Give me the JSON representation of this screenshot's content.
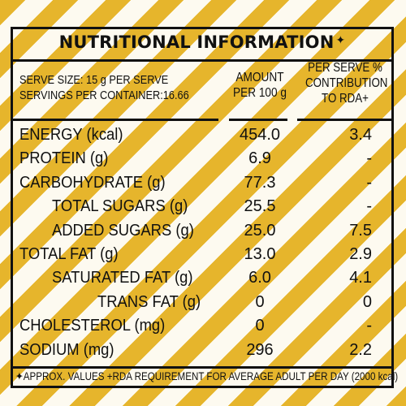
{
  "label": {
    "title": "NUTRITIONAL INFORMATION",
    "title_mark": "✦",
    "serve_size": "SERVE SIZE: 15 g PER SERVE",
    "servings": "SERVINGS PER CONTAINER:16.66",
    "amount_header_1": "AMOUNT",
    "amount_header_2": "PER 100 g",
    "rda_header_1": "PER SERVE %",
    "rda_header_2": "CONTRIBUTION",
    "rda_header_3": "TO RDA+",
    "rows": [
      {
        "label": "ENERGY (kcal)",
        "amount": "454.0",
        "rda": "3.4"
      },
      {
        "label": "PROTEIN (g)",
        "amount": "6.9",
        "rda": "-"
      },
      {
        "label": "CARBOHYDRATE (g)",
        "amount": "77.3",
        "rda": "-"
      },
      {
        "label": "TOTAL SUGARS (g)",
        "amount": "25.5",
        "rda": "-"
      },
      {
        "label": "ADDED SUGARS (g)",
        "amount": "25.0",
        "rda": "7.5"
      },
      {
        "label": "TOTAL FAT (g)",
        "amount": "13.0",
        "rda": "2.9"
      },
      {
        "label": "SATURATED FAT (g)",
        "amount": "6.0",
        "rda": "4.1"
      },
      {
        "label": "TRANS FAT (g)",
        "amount": "0",
        "rda": "0"
      },
      {
        "label": "CHOLESTEROL (mg)",
        "amount": "0",
        "rda": "-"
      },
      {
        "label": "SODIUM (mg)",
        "amount": "296",
        "rda": "2.2"
      }
    ],
    "footnote": "✦APPROX. VALUES +RDA REQUIREMENT FOR AVERAGE ADULT PER DAY (2000 kcal)"
  },
  "colors": {
    "stripe_yellow": "#e6b52c",
    "stripe_light": "#fdfaf0",
    "ink": "#111111"
  }
}
